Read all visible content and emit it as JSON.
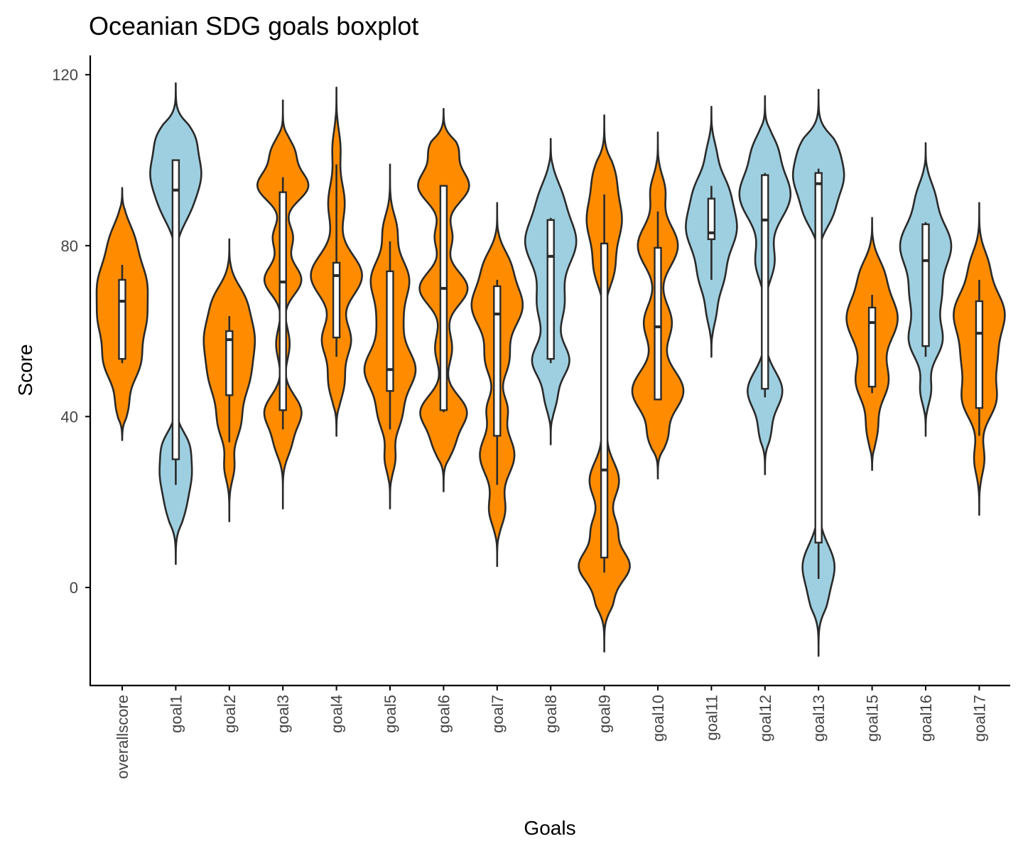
{
  "chart_data": {
    "type": "violin",
    "title": "Oceanian SDG goals boxplot",
    "xlabel": "Goals",
    "ylabel": "Score",
    "ylim": [
      -23,
      121
    ],
    "yticks": [
      0,
      40,
      80,
      120
    ],
    "grid": false,
    "legend": "none",
    "colors": {
      "orange": "#FF8C00",
      "blue": "#9ECFE0",
      "outline": "#2a2a2a",
      "box_fill": "#ffffff"
    },
    "categories": [
      {
        "label": "overallscore",
        "color": "orange",
        "min": 34.5,
        "max": 93.5,
        "box": {
          "q1": 53.5,
          "median": 67,
          "q3": 72,
          "whisker_low": 52.5,
          "whisker_high": 75.5
        },
        "peaks": [
          [
            71,
            1.0,
            6.0
          ],
          [
            53,
            0.75,
            5.0
          ],
          [
            62,
            0.55,
            4.0
          ],
          [
            82,
            0.35,
            4.0
          ],
          [
            42,
            0.2,
            3.0
          ]
        ]
      },
      {
        "label": "goal1",
        "color": "blue",
        "min": 5.5,
        "max": 118,
        "box": {
          "q1": 30,
          "median": 93,
          "q3": 100,
          "whisker_low": 24,
          "whisker_high": 100
        },
        "peaks": [
          [
            97,
            1.0,
            5.5
          ],
          [
            88,
            0.35,
            4.0
          ],
          [
            106,
            0.5,
            3.5
          ],
          [
            27,
            0.62,
            5.0
          ],
          [
            18,
            0.28,
            4.0
          ],
          [
            34,
            0.3,
            3.0
          ]
        ]
      },
      {
        "label": "goal2",
        "color": "orange",
        "min": 15.5,
        "max": 81.5,
        "box": {
          "q1": 45,
          "median": 58,
          "q3": 60,
          "whisker_low": 34,
          "whisker_high": 63.5
        },
        "peaks": [
          [
            59,
            1.0,
            6.0
          ],
          [
            48,
            0.65,
            5.0
          ],
          [
            38,
            0.4,
            4.0
          ],
          [
            68,
            0.35,
            3.5
          ],
          [
            28,
            0.2,
            3.0
          ]
        ]
      },
      {
        "label": "goal3",
        "color": "orange",
        "min": 18.5,
        "max": 114,
        "box": {
          "q1": 41.5,
          "median": 71.5,
          "q3": 92.5,
          "whisker_low": 37,
          "whisker_high": 96
        },
        "peaks": [
          [
            94,
            0.82,
            3.5
          ],
          [
            72,
            0.6,
            3.5
          ],
          [
            41,
            0.6,
            4.0
          ],
          [
            82,
            0.32,
            3.0
          ],
          [
            102,
            0.35,
            3.0
          ],
          [
            57,
            0.22,
            4.0
          ],
          [
            33,
            0.2,
            3.0
          ]
        ]
      },
      {
        "label": "goal4",
        "color": "orange",
        "min": 35.5,
        "max": 117,
        "box": {
          "q1": 58.5,
          "median": 73,
          "q3": 76,
          "whisker_low": 54,
          "whisker_high": 99
        },
        "peaks": [
          [
            73,
            1.0,
            5.0
          ],
          [
            58,
            0.55,
            4.0
          ],
          [
            90,
            0.32,
            5.0
          ],
          [
            48,
            0.3,
            4.0
          ],
          [
            103,
            0.15,
            4.0
          ]
        ]
      },
      {
        "label": "goal5",
        "color": "orange",
        "min": 18.5,
        "max": 99,
        "box": {
          "q1": 46,
          "median": 51,
          "q3": 74,
          "whisker_low": 37,
          "whisker_high": 81
        },
        "peaks": [
          [
            51,
            1.0,
            5.0
          ],
          [
            72,
            0.75,
            5.0
          ],
          [
            40,
            0.4,
            4.0
          ],
          [
            62,
            0.35,
            4.0
          ],
          [
            84,
            0.25,
            3.5
          ],
          [
            30,
            0.2,
            3.0
          ]
        ]
      },
      {
        "label": "goal6",
        "color": "orange",
        "min": 22.5,
        "max": 112,
        "box": {
          "q1": 41.5,
          "median": 70,
          "q3": 94,
          "whisker_low": 41,
          "whisker_high": 94
        },
        "peaks": [
          [
            94,
            0.9,
            4.0
          ],
          [
            70,
            0.85,
            4.0
          ],
          [
            41,
            0.82,
            4.0
          ],
          [
            103,
            0.45,
            3.0
          ],
          [
            56,
            0.3,
            4.0
          ],
          [
            82,
            0.3,
            3.0
          ],
          [
            33,
            0.28,
            3.0
          ]
        ]
      },
      {
        "label": "goal7",
        "color": "orange",
        "min": 5,
        "max": 90,
        "box": {
          "q1": 35.5,
          "median": 64,
          "q3": 70.5,
          "whisker_low": 24,
          "whisker_high": 72
        },
        "peaks": [
          [
            66,
            1.0,
            5.5
          ],
          [
            31,
            0.68,
            5.0
          ],
          [
            53,
            0.42,
            4.0
          ],
          [
            76,
            0.35,
            3.5
          ],
          [
            18,
            0.3,
            3.5
          ],
          [
            42,
            0.35,
            3.0
          ]
        ]
      },
      {
        "label": "goal8",
        "color": "blue",
        "min": 33.5,
        "max": 105,
        "box": {
          "q1": 53.5,
          "median": 77.5,
          "q3": 86,
          "whisker_low": 52.5,
          "whisker_high": 86.5
        },
        "peaks": [
          [
            81,
            1.0,
            6.0
          ],
          [
            53,
            0.72,
            4.0
          ],
          [
            66,
            0.5,
            5.0
          ],
          [
            92,
            0.3,
            4.0
          ],
          [
            44,
            0.2,
            3.0
          ]
        ]
      },
      {
        "label": "goal9",
        "color": "orange",
        "min": -15,
        "max": 110.5,
        "box": {
          "q1": 7,
          "median": 27.5,
          "q3": 80.5,
          "whisker_low": 3.5,
          "whisker_high": 92
        },
        "peaks": [
          [
            5,
            0.95,
            4.0
          ],
          [
            25,
            0.55,
            4.5
          ],
          [
            86,
            0.65,
            6.0
          ],
          [
            74,
            0.3,
            4.0
          ],
          [
            97,
            0.3,
            4.0
          ],
          [
            14,
            0.4,
            3.0
          ],
          [
            -4,
            0.25,
            3.0
          ],
          [
            40,
            0.1,
            5.0
          ]
        ]
      },
      {
        "label": "goal10",
        "color": "orange",
        "min": 25.5,
        "max": 106.5,
        "box": {
          "q1": 44,
          "median": 61,
          "q3": 79.5,
          "whisker_low": 44,
          "whisker_high": 88
        },
        "peaks": [
          [
            46,
            0.92,
            5.0
          ],
          [
            80,
            0.72,
            5.0
          ],
          [
            62,
            0.5,
            4.5
          ],
          [
            93,
            0.25,
            3.5
          ],
          [
            35,
            0.28,
            3.0
          ]
        ]
      },
      {
        "label": "goal11",
        "color": "blue",
        "min": 54,
        "max": 112.5,
        "box": {
          "q1": 81.5,
          "median": 83,
          "q3": 91,
          "whisker_low": 72,
          "whisker_high": 94
        },
        "peaks": [
          [
            84,
            1.0,
            6.0
          ],
          [
            94,
            0.42,
            4.0
          ],
          [
            72,
            0.38,
            4.0
          ],
          [
            64,
            0.15,
            3.0
          ],
          [
            102,
            0.15,
            3.0
          ]
        ]
      },
      {
        "label": "goal12",
        "color": "blue",
        "min": 26.5,
        "max": 115,
        "box": {
          "q1": 46.5,
          "median": 86,
          "q3": 96.5,
          "whisker_low": 44.5,
          "whisker_high": 97
        },
        "peaks": [
          [
            92,
            1.0,
            6.0
          ],
          [
            46,
            0.68,
            4.5
          ],
          [
            76,
            0.35,
            4.0
          ],
          [
            103,
            0.32,
            3.5
          ],
          [
            36,
            0.18,
            3.0
          ]
        ]
      },
      {
        "label": "goal13",
        "color": "blue",
        "min": -16,
        "max": 116.5,
        "box": {
          "q1": 10.5,
          "median": 94.5,
          "q3": 97,
          "whisker_low": 2,
          "whisker_high": 98
        },
        "peaks": [
          [
            96,
            1.0,
            5.0
          ],
          [
            104,
            0.45,
            3.5
          ],
          [
            87,
            0.4,
            3.5
          ],
          [
            5,
            0.65,
            5.0
          ],
          [
            -4,
            0.22,
            3.5
          ]
        ]
      },
      {
        "label": "goal15",
        "color": "orange",
        "min": 27.5,
        "max": 86.5,
        "box": {
          "q1": 47,
          "median": 62,
          "q3": 65.5,
          "whisker_low": 45.5,
          "whisker_high": 68.5
        },
        "peaks": [
          [
            63,
            1.0,
            6.0
          ],
          [
            48,
            0.6,
            4.5
          ],
          [
            74,
            0.3,
            3.5
          ],
          [
            37,
            0.2,
            3.5
          ]
        ]
      },
      {
        "label": "goal16",
        "color": "blue",
        "min": 35.5,
        "max": 104,
        "box": {
          "q1": 56.5,
          "median": 76.5,
          "q3": 85,
          "whisker_low": 54,
          "whisker_high": 85.5
        },
        "peaks": [
          [
            80,
            1.0,
            6.0
          ],
          [
            58,
            0.65,
            4.5
          ],
          [
            68,
            0.45,
            4.0
          ],
          [
            92,
            0.25,
            3.5
          ],
          [
            46,
            0.2,
            3.0
          ]
        ]
      },
      {
        "label": "goal17",
        "color": "orange",
        "min": 17,
        "max": 90,
        "box": {
          "q1": 42,
          "median": 59.5,
          "q3": 67,
          "whisker_low": 35.5,
          "whisker_high": 72
        },
        "peaks": [
          [
            64,
            1.0,
            6.0
          ],
          [
            44,
            0.65,
            4.5
          ],
          [
            53,
            0.45,
            4.0
          ],
          [
            76,
            0.25,
            3.5
          ],
          [
            30,
            0.2,
            3.5
          ]
        ]
      }
    ]
  }
}
